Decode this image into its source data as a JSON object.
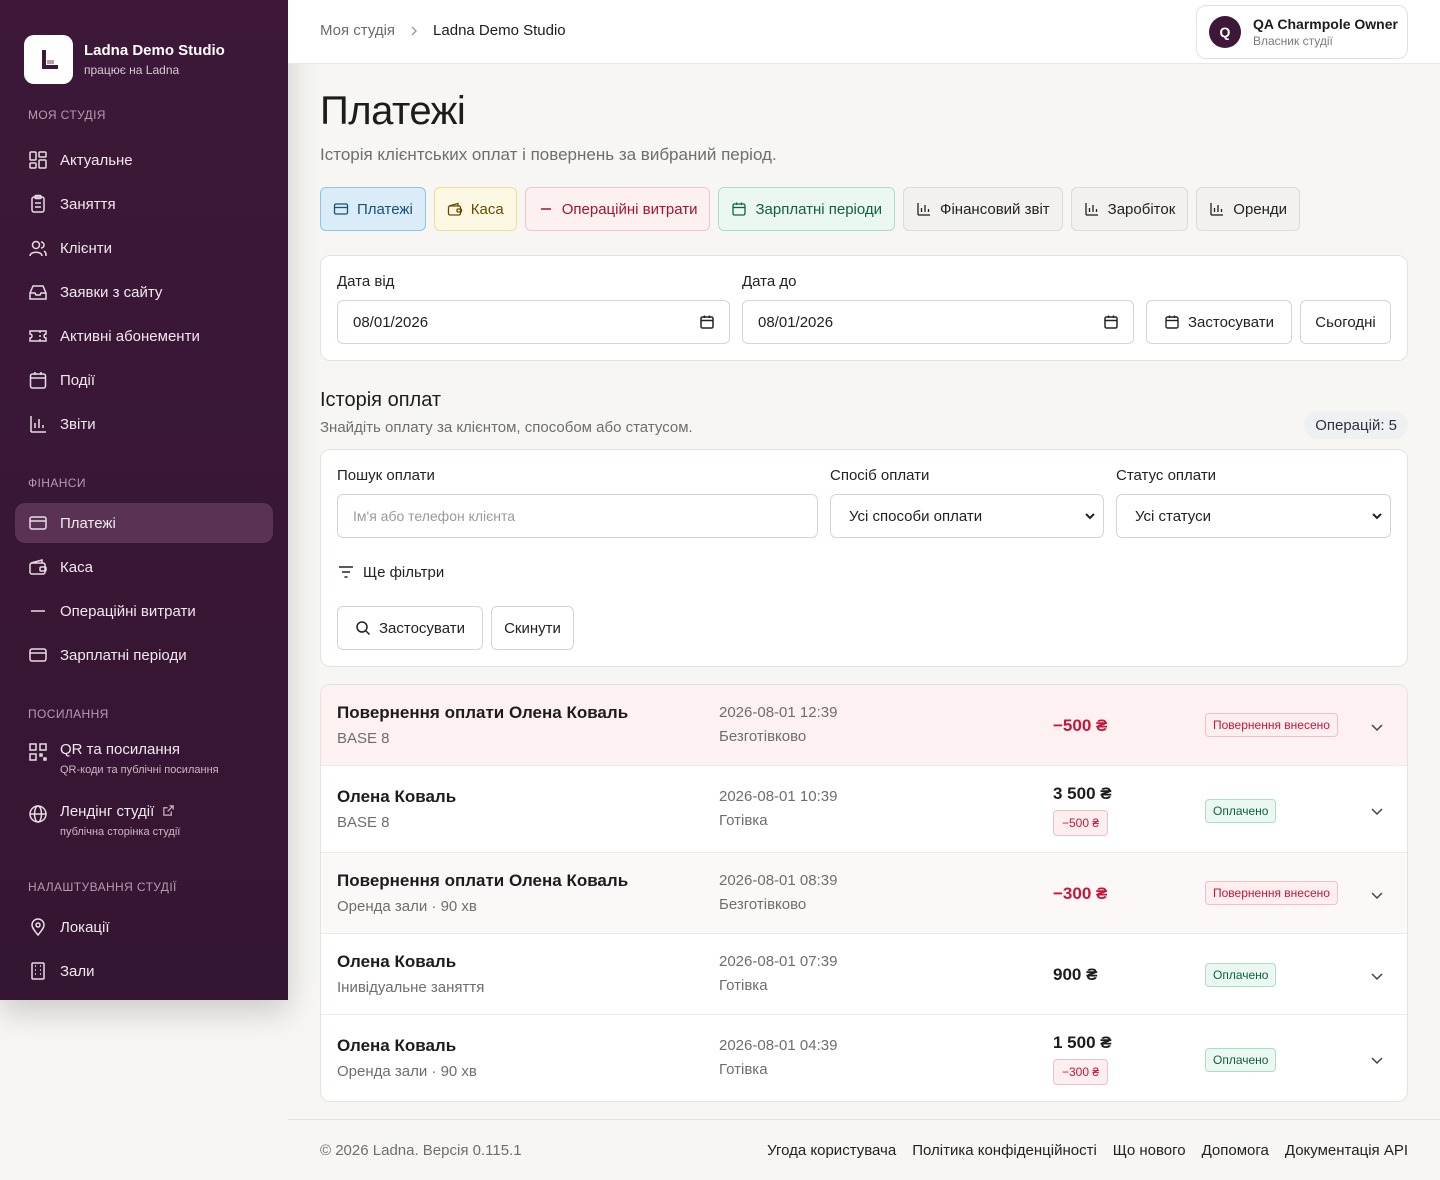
{
  "brand": {
    "title": "Ladna Demo Studio",
    "subtitle": "працює на Ladna"
  },
  "sidebar": {
    "sections": [
      {
        "title": "Моя студія",
        "items": [
          "Актуальне",
          "Заняття",
          "Клієнти",
          "Заявки з сайту",
          "Активні абонементи",
          "Події",
          "Звіти"
        ]
      },
      {
        "title": "Фінанси",
        "items": [
          "Платежі",
          "Каса",
          "Операційні витрати",
          "Зарплатні періоди"
        ]
      },
      {
        "title": "Посилання"
      },
      {
        "title": "Налаштування студії",
        "items": [
          "Локації",
          "Зали"
        ]
      }
    ],
    "links": [
      {
        "label": "QR та посилання",
        "sub": "QR-коди та публічні посилання"
      },
      {
        "label": "Лендінг студії",
        "sub": "публічна сторінка студії"
      }
    ],
    "active": "Платежі"
  },
  "header": {
    "breadcrumb": [
      "Моя студія",
      "Ladna Demo Studio"
    ],
    "user": {
      "initial": "Q",
      "name": "QA Charmpole Owner",
      "role": "Власник студії"
    }
  },
  "page": {
    "title": "Платежі",
    "subtitle": "Історія клієнтських оплат і повернень за вибраний період."
  },
  "tabs": [
    "Платежі",
    "Каса",
    "Операційні витрати",
    "Зарплатні періоди",
    "Фінансовий звіт",
    "Заробіток",
    "Оренди"
  ],
  "date_filter": {
    "from_label": "Дата від",
    "from_value": "08/01/2026",
    "to_label": "Дата до",
    "to_value": "08/01/2026",
    "apply": "Застосувати",
    "today": "Сьогодні"
  },
  "history": {
    "title": "Історія оплат",
    "subtitle": "Знайдіть оплату за клієнтом, способом або статусом.",
    "count": "Операцій: 5"
  },
  "filters": {
    "search_label": "Пошук оплати",
    "search_placeholder": "Ім'я або телефон клієнта",
    "method_label": "Спосіб оплати",
    "method_value": "Усі способи оплати",
    "status_label": "Статус оплати",
    "status_value": "Усі статуси",
    "more": "Ще фільтри",
    "apply": "Застосувати",
    "reset": "Скинути"
  },
  "payments": [
    {
      "name": "Повернення оплати Олена Коваль",
      "desc": "BASE 8",
      "date": "2026-08-01 12:39",
      "method": "Безготівково",
      "amount": "−500 ₴",
      "refund_amount": "",
      "status": "Повернення внесено"
    },
    {
      "name": "Олена Коваль",
      "desc": "BASE 8",
      "date": "2026-08-01 10:39",
      "method": "Готівка",
      "amount": "3 500 ₴",
      "refund_amount": "−500 ₴",
      "status": "Оплачено"
    },
    {
      "name": "Повернення оплати Олена Коваль",
      "desc": "Оренда зали · 90 хв",
      "date": "2026-08-01 08:39",
      "method": "Безготівково",
      "amount": "−300 ₴",
      "refund_amount": "",
      "status": "Повернення внесено"
    },
    {
      "name": "Олена Коваль",
      "desc": "Інивідуальне заняття",
      "date": "2026-08-01 07:39",
      "method": "Готівка",
      "amount": "900 ₴",
      "refund_amount": "",
      "status": "Оплачено"
    },
    {
      "name": "Олена Коваль",
      "desc": "Оренда зали · 90 хв",
      "date": "2026-08-01 04:39",
      "method": "Готівка",
      "amount": "1 500 ₴",
      "refund_amount": "−300 ₴",
      "status": "Оплачено"
    }
  ],
  "footer": {
    "copyright": "© 2026 Ladna. Версія 0.115.1",
    "links": [
      "Угода користувача",
      "Політика конфіденційності",
      "Що нового",
      "Допомога",
      "Документація API"
    ]
  },
  "colors": {
    "sidebar_bg": "#3d1838",
    "refund_red": "#c8153a",
    "paid_green": "#10603f",
    "accent_blue": "#d9ecf8"
  }
}
